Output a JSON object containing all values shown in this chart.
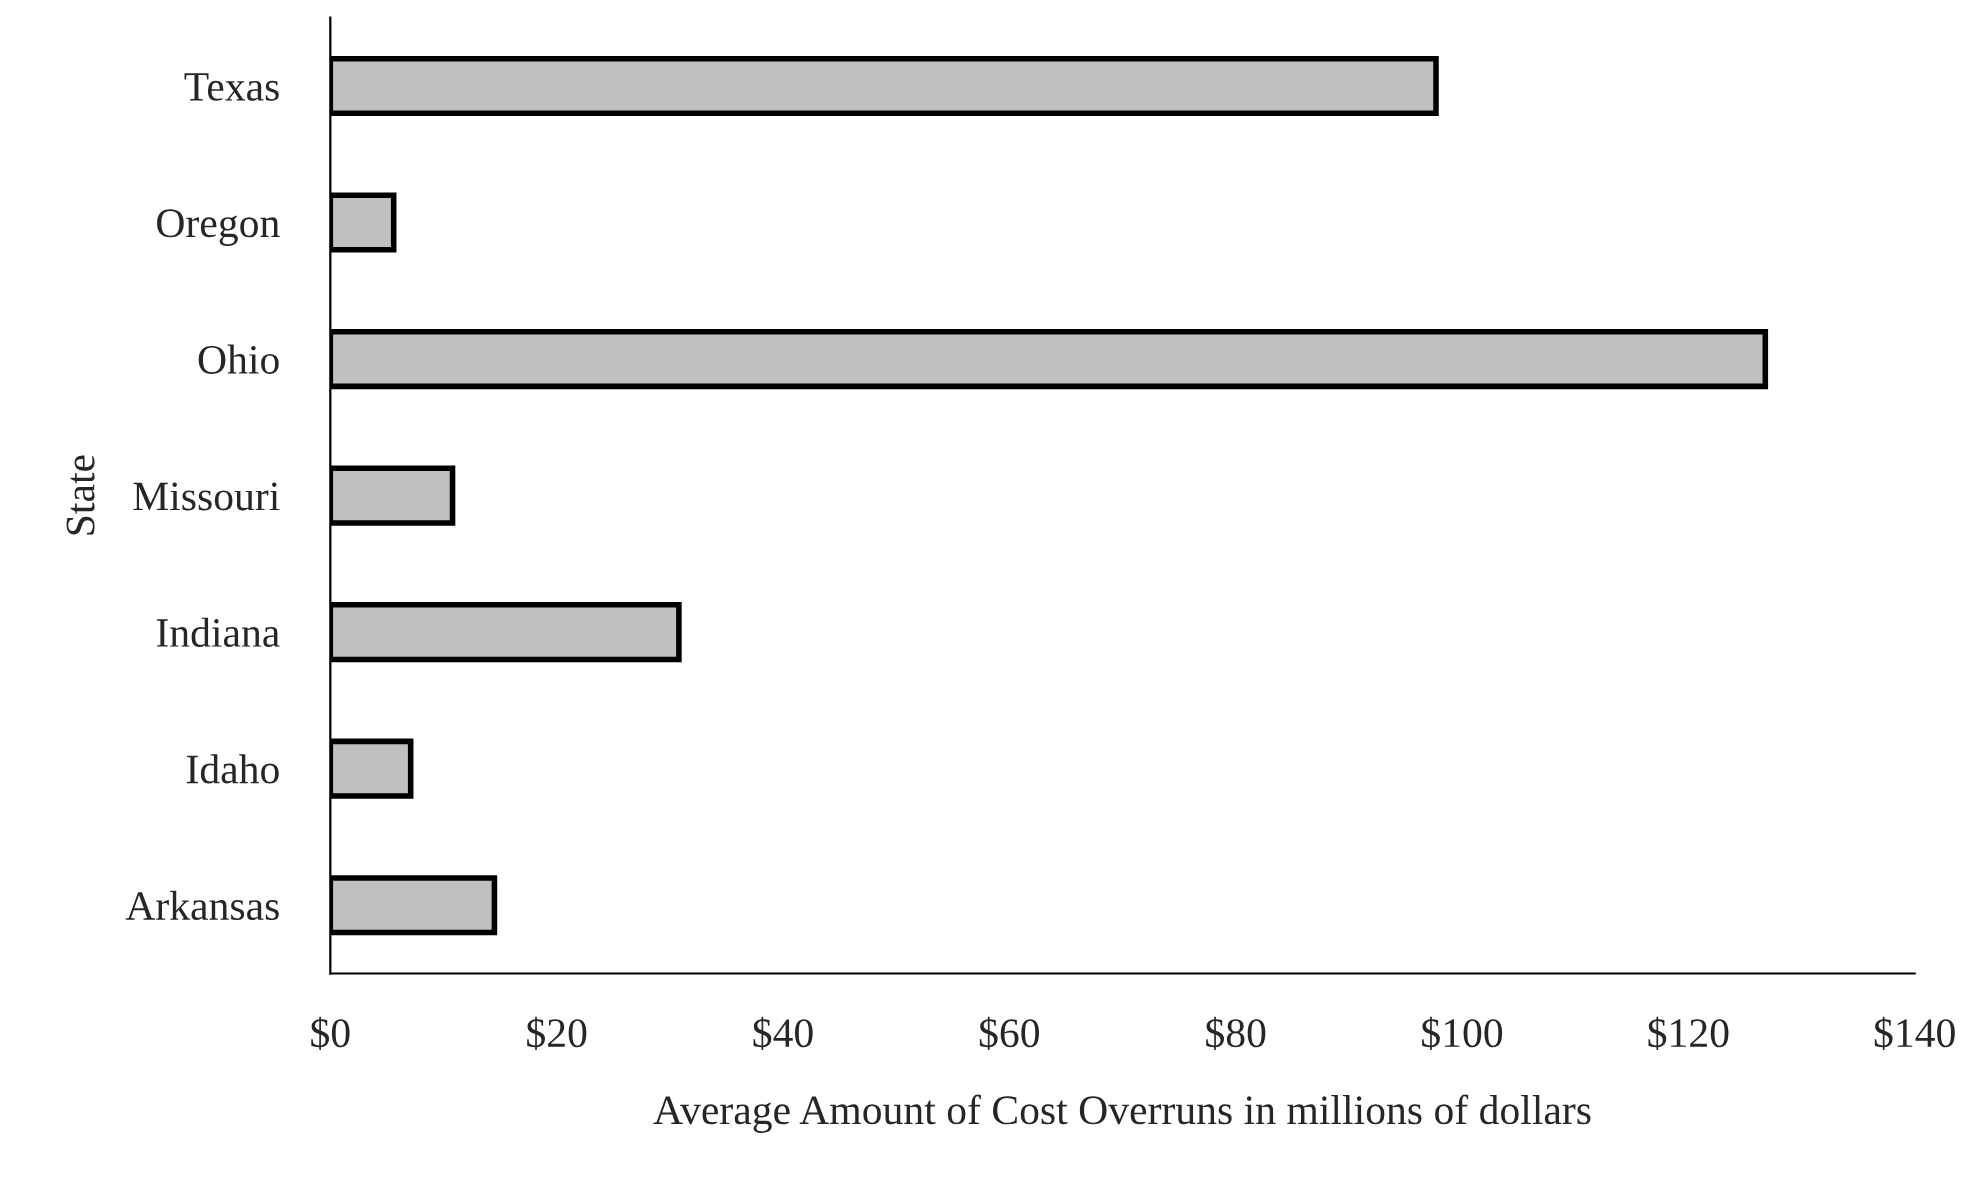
{
  "chart_data": {
    "type": "bar",
    "orientation": "horizontal",
    "xlabel": "Average Amount of Cost Overruns in millions of dollars",
    "ylabel": "State",
    "categories": [
      "Texas",
      "Oregon",
      "Ohio",
      "Missouri",
      "Indiana",
      "Idaho",
      "Arkansas"
    ],
    "values": [
      97.7,
      5.6,
      126.8,
      10.8,
      30.8,
      7.1,
      14.5
    ],
    "color": "#c0c0c0",
    "xlim": [
      0,
      140
    ],
    "xticks": [
      {
        "value": 0,
        "label": "$0"
      },
      {
        "value": 20,
        "label": "$20"
      },
      {
        "value": 40,
        "label": "$40"
      },
      {
        "value": 60,
        "label": "$60"
      },
      {
        "value": 80,
        "label": "$80"
      },
      {
        "value": 100,
        "label": "$100"
      },
      {
        "value": 120,
        "label": "$120"
      },
      {
        "value": 140,
        "label": "$140"
      }
    ],
    "grid": false,
    "legend": false
  }
}
